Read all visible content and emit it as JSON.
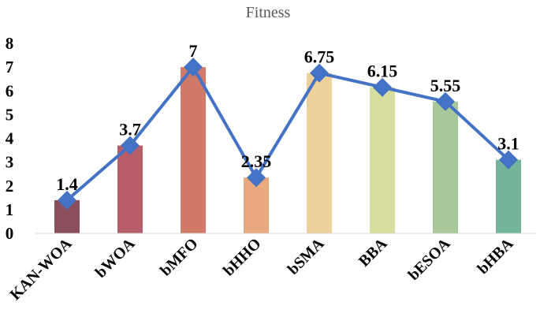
{
  "chart_data": {
    "type": "bar",
    "title": "Fitness",
    "categories": [
      "KAN-WOA",
      "bWOA",
      "bMFO",
      "bHHO",
      "bSMA",
      "BBA",
      "bESOA",
      "bHBA"
    ],
    "values": [
      1.4,
      3.7,
      7,
      2.35,
      6.75,
      6.15,
      5.55,
      3.1
    ],
    "value_labels": [
      "1.4",
      "3.7",
      "7",
      "2.35",
      "6.75",
      "6.15",
      "5.55",
      "3.1"
    ],
    "bar_colors": [
      "#8B4F5C",
      "#B85E6A",
      "#D27A6A",
      "#E8A97F",
      "#EDD09A",
      "#D8DDA0",
      "#A7C99A",
      "#74B49A"
    ],
    "line_overlay": {
      "marker": "diamond",
      "color": "#4472C4"
    },
    "ylim": [
      0,
      8
    ],
    "yticks": [
      "0",
      "1",
      "2",
      "3",
      "4",
      "5",
      "6",
      "7",
      "8"
    ],
    "xlabel": "",
    "ylabel": "",
    "grid": false,
    "legend": "none"
  }
}
